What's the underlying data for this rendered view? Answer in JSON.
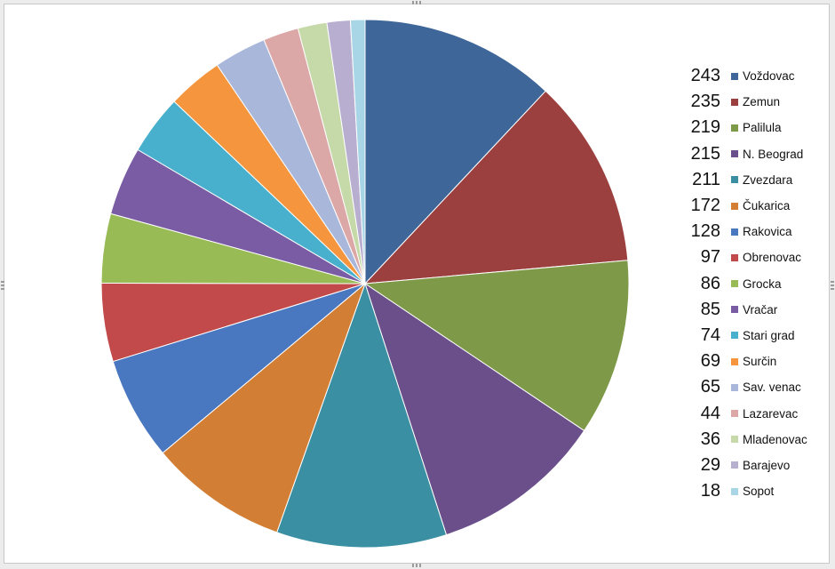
{
  "chart_data": {
    "type": "pie",
    "categories": [
      "Voždovac",
      "Zemun",
      "Palilula",
      "N. Beograd",
      "Zvezdara",
      "Čukarica",
      "Rakovica",
      "Obrenovac",
      "Grocka",
      "Vračar",
      "Stari grad",
      "Surčin",
      "Sav. venac",
      "Lazarevac",
      "Mladenovac",
      "Barajevo",
      "Sopot"
    ],
    "values": [
      243,
      235,
      219,
      215,
      211,
      172,
      128,
      97,
      86,
      85,
      74,
      69,
      65,
      44,
      36,
      29,
      18
    ],
    "colors": [
      "#3e6699",
      "#9b3f3f",
      "#7e9a48",
      "#6a4f8a",
      "#3a8fa3",
      "#d27f35",
      "#4a78c0",
      "#c24a4a",
      "#98bb55",
      "#7a5ca5",
      "#48b0cc",
      "#f5963f",
      "#a9b8da",
      "#dba7a7",
      "#c6d9a8",
      "#b8aed0",
      "#a8d6e6"
    ],
    "title": "",
    "legend_position": "right"
  }
}
